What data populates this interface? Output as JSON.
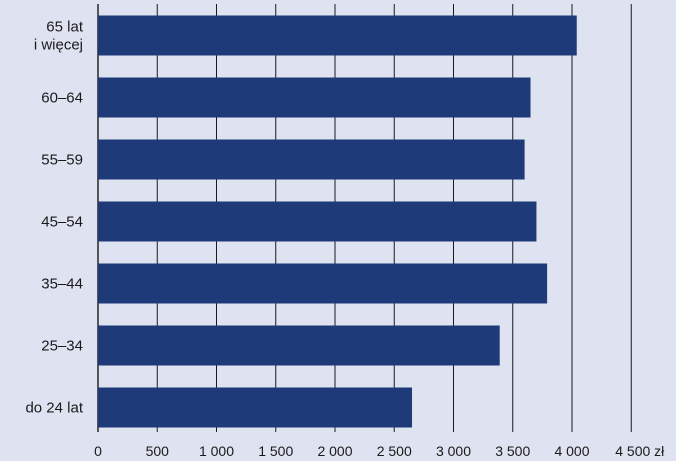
{
  "chart_data": {
    "type": "bar",
    "orientation": "horizontal",
    "categories": [
      [
        "65 lat",
        "i więcej"
      ],
      [
        "60–64"
      ],
      [
        "55–59"
      ],
      [
        "45–54"
      ],
      [
        "35–44"
      ],
      [
        "25–34"
      ],
      [
        "do 24 lat"
      ]
    ],
    "values": [
      4040,
      3650,
      3600,
      3700,
      3790,
      3390,
      2650
    ],
    "xticks": [
      0,
      500,
      1000,
      1500,
      2000,
      2500,
      3000,
      3500,
      4000,
      4500
    ],
    "xtick_labels": [
      "0",
      "500",
      "1 000",
      "1 500",
      "2 000",
      "2 500",
      "3 000",
      "3 500",
      "4 000",
      "4 500"
    ],
    "x_unit": "zł",
    "xlim": [
      0,
      4500
    ],
    "grid": "vertical",
    "title": "",
    "xlabel": "",
    "ylabel": "",
    "bar_color": "#1e3a78",
    "grid_color": "#1a1a1a"
  }
}
